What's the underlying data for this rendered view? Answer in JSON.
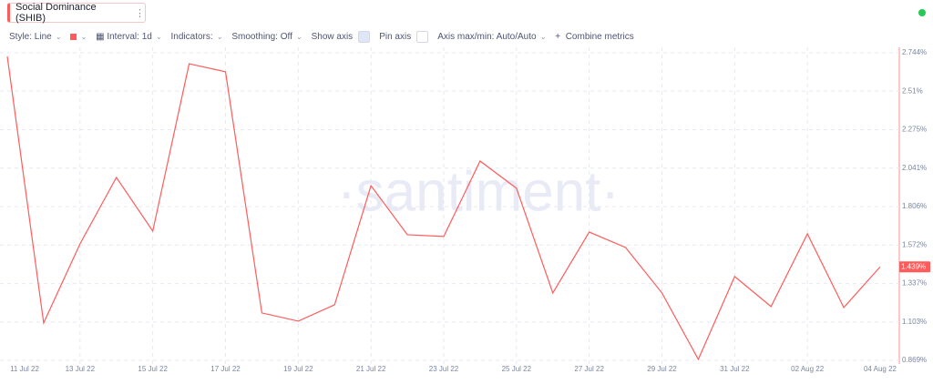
{
  "toolbar": {
    "metric": "Social Dominance (SHIB)",
    "style": "Style: Line",
    "interval": "Interval: 1d",
    "indicators": "Indicators:",
    "smoothing": "Smoothing: Off",
    "show_axis": "Show axis",
    "pin_axis": "Pin axis",
    "axis_minmax": "Axis max/min: Auto/Auto",
    "combine": "Combine metrics"
  },
  "chart_data": {
    "type": "line",
    "watermark": "·santiment·",
    "categories": [
      "11 Jul 22",
      null,
      "13 Jul 22",
      null,
      "15 Jul 22",
      null,
      "17 Jul 22",
      null,
      "19 Jul 22",
      null,
      "21 Jul 22",
      null,
      "23 Jul 22",
      null,
      "25 Jul 22",
      null,
      "27 Jul 22",
      null,
      "29 Jul 22",
      null,
      "31 Jul 22",
      null,
      "02 Aug 22",
      null,
      "04 Aug 22"
    ],
    "series": [
      {
        "name": "Social Dominance (SHIB)",
        "color": "#ff5b5b",
        "values": [
          2.722,
          1.097,
          1.579,
          1.984,
          1.657,
          2.677,
          2.628,
          1.158,
          1.108,
          1.208,
          1.934,
          1.635,
          1.624,
          2.084,
          1.918,
          1.28,
          1.651,
          1.557,
          1.28,
          0.875,
          1.38,
          1.197,
          1.64,
          1.191,
          1.439
        ],
        "value_labels": [
          null,
          null,
          null,
          null,
          null,
          null,
          null,
          null,
          null,
          null,
          null,
          null,
          null,
          null,
          null,
          null,
          null,
          null,
          null,
          null,
          null,
          null,
          null,
          null,
          "1.439%"
        ]
      }
    ],
    "ylim": [
      0.869,
      2.744
    ],
    "yticks": [
      {
        "value": 0.869,
        "label": "0.869%"
      },
      {
        "value": 1.103,
        "label": "1.103%"
      },
      {
        "value": 1.337,
        "label": "1.337%"
      },
      {
        "value": 1.572,
        "label": "1.572%"
      },
      {
        "value": 1.806,
        "label": "1.806%"
      },
      {
        "value": 2.041,
        "label": "2.041%"
      },
      {
        "value": 2.275,
        "label": "2.275%"
      },
      {
        "value": 2.51,
        "label": "2.51%"
      },
      {
        "value": 2.744,
        "label": "2.744%"
      }
    ],
    "grid": true
  }
}
